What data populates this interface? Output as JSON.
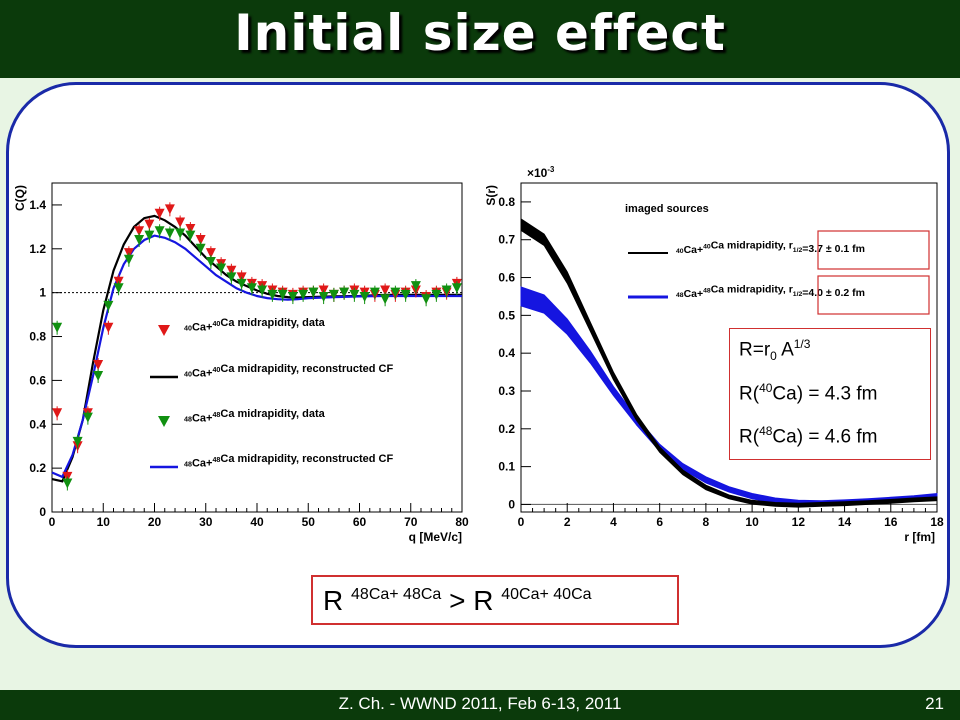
{
  "slide": {
    "title": "Initial size effect",
    "footer": "Z. Ch. - WWND 2011, Feb 6-13, 2011",
    "page_number": "21",
    "radius_box": {
      "l1_main": "R=r",
      "l1_sub": "0",
      "l1_tail": " A",
      "l1_sup": "1/3",
      "l2_pre": "R(",
      "l2_sup": "40",
      "l2_post": "Ca) = 4.3 fm",
      "l3_pre": "R(",
      "l3_sup": "48",
      "l3_post": "Ca) = 4.6 fm"
    },
    "comparison": {
      "r1": "R",
      "sup1": "48Ca+ 48Ca",
      "op": " > R",
      "sup2": "40Ca+ 40Ca"
    }
  },
  "chart_data": [
    {
      "type": "scatter",
      "xlabel": "q [MeV/c]",
      "ylabel": "C(Q)",
      "xlim": [
        0,
        80
      ],
      "ylim": [
        0,
        1.5
      ],
      "xticks": [
        0,
        10,
        20,
        30,
        40,
        50,
        60,
        70,
        80
      ],
      "yticks": [
        0,
        0.2,
        0.4,
        0.6,
        0.8,
        1,
        1.2,
        1.4
      ],
      "reference_line": 1,
      "colors": {
        "ca40": "#e01818",
        "ca48": "#109010",
        "curve40": "#000000",
        "curve48": "#1515e0"
      },
      "legend": [
        {
          "pre": "",
          "sup1": "40",
          "mid": "Ca+",
          "sup2": "40",
          "post": "Ca midrapidity, data",
          "kind": "tri-red"
        },
        {
          "pre": "",
          "sup1": "40",
          "mid": "Ca+",
          "sup2": "40",
          "post": "Ca midrapidity, reconstructed CF",
          "kind": "line-black"
        },
        {
          "pre": "",
          "sup1": "48",
          "mid": "Ca+",
          "sup2": "48",
          "post": "Ca midrapidity, data",
          "kind": "tri-green"
        },
        {
          "pre": "",
          "sup1": "48",
          "mid": "Ca+",
          "sup2": "48",
          "post": "Ca midrapidity, reconstructed CF",
          "kind": "line-blue"
        }
      ],
      "series": [
        {
          "name": "40Ca+40Ca midrapidity, data",
          "x": [
            1,
            3,
            5,
            7,
            9,
            11,
            13,
            15,
            17,
            19,
            21,
            23,
            25,
            27,
            29,
            31,
            33,
            35,
            37,
            39,
            41,
            43,
            45,
            47,
            49,
            51,
            53,
            55,
            57,
            59,
            61,
            63,
            65,
            67,
            69,
            71,
            73,
            75,
            77,
            79
          ],
          "y": [
            0.45,
            0.16,
            0.3,
            0.45,
            0.67,
            0.84,
            1.05,
            1.18,
            1.28,
            1.31,
            1.36,
            1.38,
            1.32,
            1.29,
            1.24,
            1.18,
            1.13,
            1.1,
            1.07,
            1.04,
            1.03,
            1.01,
            1.0,
            0.99,
            1.0,
            1.0,
            1.01,
            0.99,
            1.0,
            1.01,
            1.0,
            0.99,
            1.01,
            0.99,
            1.0,
            1.01,
            0.98,
            1.0,
            1.0,
            1.04
          ]
        },
        {
          "name": "48Ca+48Ca midrapidity, data",
          "x": [
            1,
            3,
            5,
            7,
            9,
            11,
            13,
            15,
            17,
            19,
            21,
            23,
            25,
            27,
            29,
            31,
            33,
            35,
            37,
            39,
            41,
            43,
            45,
            47,
            49,
            51,
            53,
            55,
            57,
            59,
            61,
            63,
            65,
            67,
            69,
            71,
            73,
            75,
            77,
            79
          ],
          "y": [
            0.84,
            0.13,
            0.32,
            0.43,
            0.62,
            0.94,
            1.02,
            1.15,
            1.24,
            1.26,
            1.28,
            1.27,
            1.27,
            1.26,
            1.2,
            1.14,
            1.11,
            1.07,
            1.04,
            1.02,
            1.01,
            0.99,
            0.99,
            0.98,
            0.99,
            1.0,
            0.98,
            0.99,
            1.0,
            0.99,
            0.98,
            1.0,
            0.97,
            1.0,
            0.99,
            1.03,
            0.97,
            0.99,
            1.01,
            1.02
          ]
        },
        {
          "name": "40Ca+40Ca midrapidity, reconstructed CF",
          "x": [
            0,
            2,
            4,
            6,
            8,
            10,
            12,
            14,
            16,
            18,
            20,
            22,
            24,
            26,
            28,
            30,
            32,
            34,
            36,
            38,
            40,
            42,
            44,
            46,
            48,
            50,
            55,
            60,
            65,
            70,
            75,
            80
          ],
          "y": [
            0.15,
            0.14,
            0.25,
            0.42,
            0.68,
            0.92,
            1.1,
            1.22,
            1.3,
            1.34,
            1.35,
            1.33,
            1.3,
            1.26,
            1.21,
            1.16,
            1.12,
            1.08,
            1.05,
            1.03,
            1.01,
            0.995,
            0.985,
            0.98,
            0.978,
            0.98,
            0.983,
            0.985,
            0.99,
            0.99,
            0.99,
            0.99
          ]
        },
        {
          "name": "48Ca+48Ca midrapidity, reconstructed CF",
          "x": [
            0,
            2,
            4,
            6,
            8,
            10,
            12,
            14,
            16,
            18,
            20,
            22,
            24,
            26,
            28,
            30,
            32,
            34,
            36,
            38,
            40,
            42,
            44,
            46,
            48,
            50,
            55,
            60,
            65,
            70,
            75,
            80
          ],
          "y": [
            0.18,
            0.16,
            0.26,
            0.42,
            0.62,
            0.84,
            1.02,
            1.13,
            1.2,
            1.24,
            1.26,
            1.25,
            1.23,
            1.2,
            1.16,
            1.12,
            1.08,
            1.05,
            1.02,
            1.0,
            0.985,
            0.975,
            0.97,
            0.968,
            0.97,
            0.975,
            0.98,
            0.983,
            0.985,
            0.985,
            0.985,
            0.985
          ]
        }
      ]
    },
    {
      "type": "area",
      "title": "imaged sources",
      "xlabel": "r [fm]",
      "ylabel": "S(r)",
      "multiplier": "×10",
      "multiplier_exp": "-3",
      "xlim": [
        0,
        18
      ],
      "ylim": [
        -0.02,
        0.85
      ],
      "xticks": [
        0,
        2,
        4,
        6,
        8,
        10,
        12,
        14,
        16,
        18
      ],
      "yticks": [
        0,
        0.1,
        0.2,
        0.3,
        0.4,
        0.5,
        0.6,
        0.7,
        0.8
      ],
      "legend": [
        {
          "sup1": "40",
          "mid": "Ca+",
          "sup2": "40",
          "post": "Ca midrapidity, r",
          "rsub": "1/2",
          "val": "=3.7 ± 0.1 fm",
          "color": "#000000"
        },
        {
          "sup1": "48",
          "mid": "Ca+",
          "sup2": "48",
          "post": "Ca midrapidity, r",
          "rsub": "1/2",
          "val": "=4.0 ± 0.2 fm",
          "color": "#1515e0"
        }
      ],
      "series": [
        {
          "name": "40Ca+40Ca",
          "color": "#000000",
          "x": [
            0,
            1,
            2,
            3,
            4,
            5,
            6,
            7,
            8,
            9,
            10,
            11,
            12,
            13,
            14,
            15,
            16,
            17,
            18
          ],
          "y": [
            0.74,
            0.7,
            0.6,
            0.47,
            0.34,
            0.23,
            0.145,
            0.085,
            0.045,
            0.02,
            0.006,
            0.0,
            -0.002,
            0.0,
            0.002,
            0.005,
            0.008,
            0.012,
            0.015
          ],
          "err": [
            0.015,
            0.015,
            0.015,
            0.012,
            0.01,
            0.008,
            0.007,
            0.006,
            0.006,
            0.005,
            0.005,
            0.005,
            0.005,
            0.005,
            0.005,
            0.005,
            0.005,
            0.005,
            0.005
          ]
        },
        {
          "name": "48Ca+48Ca",
          "color": "#1515e0",
          "x": [
            0,
            1,
            2,
            3,
            4,
            5,
            6,
            7,
            8,
            9,
            10,
            11,
            12,
            13,
            14,
            15,
            16,
            17,
            18
          ],
          "y": [
            0.55,
            0.53,
            0.47,
            0.39,
            0.3,
            0.22,
            0.15,
            0.1,
            0.065,
            0.04,
            0.022,
            0.01,
            0.004,
            0.003,
            0.005,
            0.008,
            0.012,
            0.016,
            0.022
          ],
          "err": [
            0.025,
            0.024,
            0.02,
            0.016,
            0.012,
            0.01,
            0.009,
            0.008,
            0.008,
            0.007,
            0.007,
            0.007,
            0.007,
            0.007,
            0.007,
            0.007,
            0.007,
            0.007,
            0.007
          ]
        }
      ]
    }
  ]
}
